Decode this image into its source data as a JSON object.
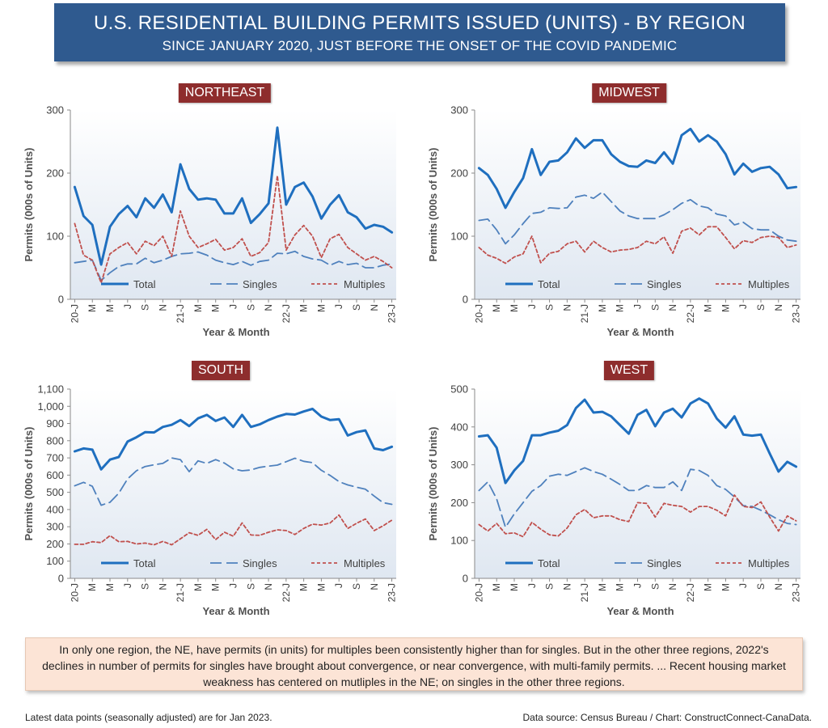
{
  "header": {
    "title": "U.S. RESIDENTIAL BUILDING PERMITS ISSUED (UNITS) - BY REGION",
    "subtitle": "SINCE JANUARY 2020, JUST BEFORE THE ONSET OF THE COVID PANDEMIC"
  },
  "colors": {
    "total": "#1f6fbf",
    "singles": "#4f81bd",
    "multiples": "#c0504d",
    "label_bg": "#8e2d2d",
    "banner": "#2f5a8f"
  },
  "legend": {
    "total": "Total",
    "singles": "Singles",
    "multiples": "Multiples"
  },
  "note": "In only one region, the NE, have permits (in units) for multiples been consistently higher than for singles. But in the other three regions, 2022's declines in number of permits for singles have brought about convergence, or near convergence, with multi-family permits.  ... Recent housing market weakness has centered on mutliples in the NE; on singles in the other three regions.",
  "footer": {
    "left": "Latest data points (seasonally adjusted) are for Jan 2023.",
    "right": "Data source: Census Bureau / Chart: ConstructConnect-CanaData."
  },
  "chart_data": [
    {
      "type": "line",
      "title": "NORTHEAST",
      "xlabel": "Year & Month",
      "ylabel": "Permits (000s of Units)",
      "ylim": [
        0,
        300
      ],
      "yticks": [
        "0",
        "100",
        "200",
        "300"
      ],
      "xtick_labels": [
        "20-J",
        "M",
        "M",
        "J",
        "S",
        "N",
        "21-J",
        "M",
        "M",
        "J",
        "S",
        "N",
        "22-J",
        "M",
        "M",
        "J",
        "S",
        "N",
        "23-J"
      ],
      "series": [
        {
          "name": "Total",
          "values": [
            178,
            132,
            118,
            55,
            115,
            135,
            148,
            130,
            160,
            145,
            166,
            138,
            214,
            175,
            158,
            160,
            158,
            136,
            136,
            160,
            121,
            135,
            152,
            272,
            150,
            178,
            185,
            163,
            128,
            150,
            165,
            138,
            130,
            112,
            118,
            115,
            106
          ]
        },
        {
          "name": "Singles",
          "values": [
            58,
            60,
            62,
            30,
            42,
            52,
            56,
            56,
            65,
            58,
            62,
            68,
            72,
            73,
            75,
            70,
            62,
            58,
            55,
            60,
            54,
            60,
            62,
            73,
            72,
            76,
            68,
            64,
            62,
            54,
            60,
            55,
            57,
            50,
            50,
            54,
            56
          ]
        },
        {
          "name": "Multiples",
          "values": [
            120,
            70,
            62,
            26,
            72,
            82,
            90,
            72,
            92,
            85,
            100,
            68,
            140,
            100,
            82,
            88,
            95,
            78,
            82,
            96,
            68,
            74,
            90,
            196,
            78,
            102,
            117,
            100,
            66,
            96,
            103,
            82,
            72,
            62,
            68,
            60,
            50
          ]
        }
      ]
    },
    {
      "type": "line",
      "title": "MIDWEST",
      "xlabel": "Year & Month",
      "ylabel": "Permits (000s of Units)",
      "ylim": [
        0,
        300
      ],
      "yticks": [
        "0",
        "100",
        "200",
        "300"
      ],
      "xtick_labels": [
        "20-J",
        "M",
        "M",
        "J",
        "S",
        "N",
        "21-J",
        "M",
        "M",
        "J",
        "S",
        "N",
        "22-J",
        "M",
        "M",
        "J",
        "S",
        "N",
        "23-J"
      ],
      "series": [
        {
          "name": "Total",
          "values": [
            208,
            197,
            175,
            145,
            170,
            192,
            238,
            197,
            218,
            220,
            233,
            255,
            240,
            252,
            252,
            230,
            218,
            211,
            210,
            220,
            216,
            233,
            215,
            260,
            270,
            250,
            260,
            250,
            230,
            198,
            215,
            202,
            208,
            210,
            198,
            176,
            178
          ]
        },
        {
          "name": "Singles",
          "values": [
            125,
            127,
            110,
            88,
            102,
            120,
            136,
            138,
            145,
            144,
            145,
            162,
            165,
            160,
            170,
            155,
            140,
            132,
            128,
            128,
            128,
            134,
            142,
            152,
            158,
            148,
            145,
            135,
            132,
            118,
            122,
            112,
            110,
            110,
            100,
            94,
            92
          ]
        },
        {
          "name": "Multiples",
          "values": [
            82,
            70,
            65,
            57,
            67,
            72,
            100,
            58,
            73,
            76,
            88,
            92,
            75,
            92,
            82,
            75,
            78,
            79,
            82,
            92,
            88,
            99,
            73,
            108,
            113,
            102,
            115,
            115,
            98,
            80,
            93,
            90,
            98,
            100,
            98,
            82,
            86
          ]
        }
      ]
    },
    {
      "type": "line",
      "title": "SOUTH",
      "xlabel": "Year & Month",
      "ylabel": "Permits (000s of Units)",
      "ylim": [
        0,
        1100
      ],
      "yticks": [
        "0",
        "100",
        "200",
        "300",
        "400",
        "500",
        "600",
        "700",
        "800",
        "900",
        "1,000",
        "1,100"
      ],
      "xtick_labels": [
        "20-J",
        "M",
        "M",
        "J",
        "S",
        "N",
        "21-J",
        "M",
        "M",
        "J",
        "S",
        "N",
        "22-J",
        "M",
        "M",
        "J",
        "S",
        "N",
        "23-J"
      ],
      "series": [
        {
          "name": "Total",
          "values": [
            738,
            755,
            748,
            633,
            690,
            705,
            795,
            820,
            850,
            848,
            880,
            892,
            920,
            885,
            930,
            950,
            915,
            935,
            880,
            950,
            880,
            895,
            920,
            940,
            955,
            952,
            970,
            985,
            940,
            920,
            925,
            830,
            850,
            860,
            755,
            745,
            765
          ]
        },
        {
          "name": "Singles",
          "values": [
            538,
            558,
            535,
            425,
            442,
            495,
            578,
            625,
            650,
            660,
            668,
            700,
            690,
            620,
            683,
            668,
            690,
            670,
            636,
            625,
            630,
            645,
            652,
            658,
            678,
            698,
            680,
            672,
            628,
            598,
            562,
            543,
            530,
            518,
            478,
            440,
            430
          ]
        },
        {
          "name": "Multiples",
          "values": [
            198,
            198,
            213,
            208,
            248,
            213,
            215,
            200,
            205,
            195,
            215,
            195,
            230,
            265,
            250,
            285,
            225,
            268,
            245,
            322,
            252,
            250,
            268,
            282,
            278,
            255,
            290,
            315,
            310,
            322,
            368,
            290,
            320,
            345,
            278,
            305,
            338
          ]
        }
      ]
    },
    {
      "type": "line",
      "title": "WEST",
      "xlabel": "Year & Month",
      "ylabel": "Permits (000s of Units)",
      "ylim": [
        0,
        500
      ],
      "yticks": [
        "0",
        "100",
        "200",
        "300",
        "400",
        "500"
      ],
      "xtick_labels": [
        "20-J",
        "M",
        "M",
        "J",
        "S",
        "N",
        "21-J",
        "M",
        "M",
        "J",
        "S",
        "N",
        "22-J",
        "M",
        "M",
        "J",
        "S",
        "N",
        "23-J"
      ],
      "series": [
        {
          "name": "Total",
          "values": [
            375,
            378,
            345,
            252,
            285,
            310,
            378,
            378,
            385,
            390,
            405,
            450,
            472,
            438,
            440,
            428,
            405,
            382,
            432,
            445,
            402,
            438,
            448,
            425,
            462,
            475,
            462,
            422,
            398,
            428,
            380,
            377,
            380,
            330,
            282,
            308,
            295
          ]
        },
        {
          "name": "Singles",
          "values": [
            232,
            255,
            210,
            135,
            170,
            200,
            230,
            245,
            270,
            275,
            272,
            282,
            292,
            282,
            275,
            262,
            248,
            232,
            232,
            245,
            240,
            240,
            255,
            232,
            288,
            285,
            272,
            245,
            235,
            215,
            192,
            190,
            180,
            168,
            155,
            145,
            142
          ]
        },
        {
          "name": "Multiples",
          "values": [
            142,
            125,
            145,
            118,
            120,
            110,
            148,
            130,
            115,
            112,
            133,
            168,
            182,
            160,
            165,
            165,
            155,
            150,
            200,
            198,
            162,
            198,
            193,
            190,
            175,
            190,
            190,
            180,
            165,
            220,
            190,
            187,
            202,
            162,
            125,
            165,
            152
          ]
        }
      ]
    }
  ]
}
